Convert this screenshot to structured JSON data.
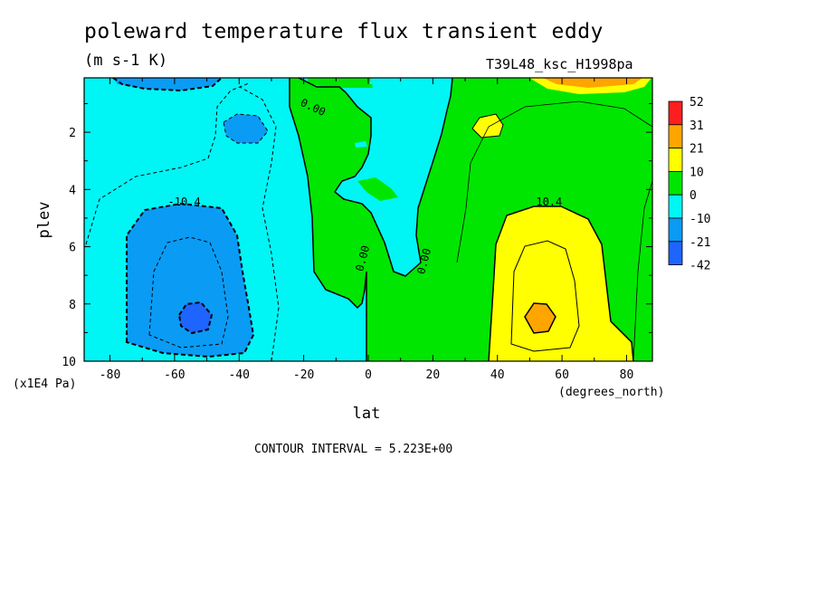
{
  "header": {
    "title": "poleward temperature flux transient eddy",
    "units": "(m s-1 K)",
    "run_id": "T39L48_ksc_H1998pa"
  },
  "footer": {
    "contour_interval": "CONTOUR INTERVAL = 5.223E+00"
  },
  "colors": {
    "lvl_m42": "#1e64ff",
    "lvl_m21": "#0a9bf5",
    "lvl_m10": "#00f5f5",
    "lvl_0": "#00e600",
    "lvl_10": "#ffff00",
    "lvl_21": "#ffa500",
    "lvl_31": "#ff1e1e"
  },
  "chart_data": {
    "type": "heatmap",
    "title": "poleward temperature flux transient eddy",
    "subtitle": "(m s-1 K)",
    "xlabel": "lat",
    "xunits": "(degrees_north)",
    "ylabel": "plev",
    "yunits": "(x1E4 Pa)",
    "xlim": [
      -88,
      88
    ],
    "ylim": [
      10,
      0.1
    ],
    "y_inverted": true,
    "x_ticks": [
      "-80",
      "-60",
      "-40",
      "-20",
      "0",
      "20",
      "40",
      "60",
      "80"
    ],
    "x_tick_values": [
      -80,
      -60,
      -40,
      -20,
      0,
      20,
      40,
      60,
      80
    ],
    "y_ticks": [
      "2",
      "4",
      "6",
      "8",
      "10"
    ],
    "y_tick_values": [
      2,
      4,
      6,
      8,
      10
    ],
    "colorbar_labels": [
      "52",
      "31",
      "21",
      "10",
      "0",
      "-10",
      "-21",
      "-42"
    ],
    "contour_labels": [
      {
        "text": "-10.4",
        "lat": -57,
        "plev": 4.4
      },
      {
        "text": "10.4",
        "lat": 56,
        "plev": 4.4
      },
      {
        "text": "0.00",
        "lat": -17,
        "plev": 1.1
      },
      {
        "text": "0.00",
        "lat": -2,
        "plev": 6.4
      },
      {
        "text": "0.00",
        "lat": 17,
        "plev": 6.5
      }
    ],
    "extremes": [
      {
        "label": "min",
        "lat": -54,
        "plev": 8.5,
        "approx_value": -40
      },
      {
        "label": "max",
        "lat": 54,
        "plev": 8.5,
        "approx_value": 40
      }
    ],
    "grid": false
  }
}
